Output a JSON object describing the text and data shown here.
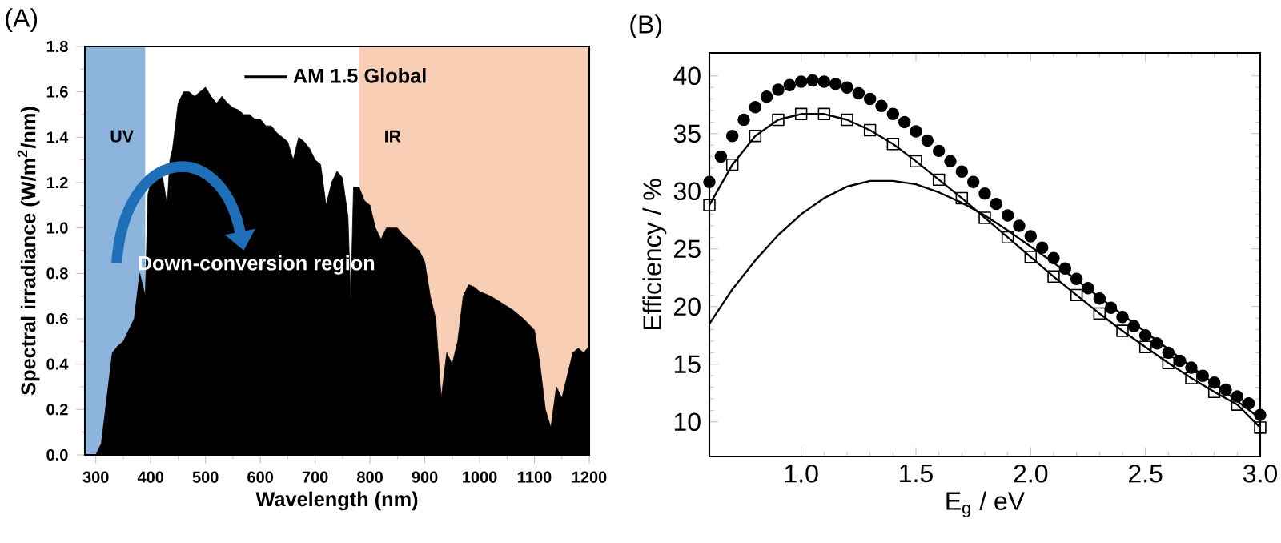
{
  "chart_data": [
    {
      "type": "area",
      "title": "(A)",
      "xlabel": "Wavelength (nm)",
      "ylabel": "Spectral irradiance (W/m$^{2}$/nm)",
      "x": [
        280,
        300,
        310,
        320,
        330,
        340,
        350,
        360,
        370,
        380,
        390,
        395,
        400,
        410,
        420,
        430,
        435,
        440,
        450,
        460,
        470,
        480,
        490,
        500,
        510,
        520,
        530,
        540,
        550,
        560,
        570,
        580,
        590,
        600,
        610,
        620,
        630,
        640,
        650,
        660,
        670,
        680,
        690,
        700,
        710,
        720,
        730,
        740,
        750,
        760,
        765,
        770,
        780,
        790,
        800,
        810,
        820,
        830,
        840,
        850,
        860,
        870,
        880,
        890,
        900,
        910,
        920,
        930,
        940,
        950,
        960,
        970,
        980,
        990,
        1000,
        1020,
        1040,
        1060,
        1080,
        1100,
        1110,
        1120,
        1130,
        1140,
        1150,
        1160,
        1170,
        1180,
        1190,
        1200
      ],
      "series": [
        {
          "name": "AM 1.5 Global",
          "color": "#000000",
          "values": [
            0,
            0,
            0.05,
            0.25,
            0.45,
            0.48,
            0.5,
            0.55,
            0.6,
            0.8,
            0.7,
            1.15,
            1.2,
            1.25,
            1.25,
            1.1,
            1.3,
            1.35,
            1.55,
            1.6,
            1.6,
            1.58,
            1.6,
            1.62,
            1.58,
            1.55,
            1.58,
            1.55,
            1.53,
            1.52,
            1.5,
            1.5,
            1.48,
            1.48,
            1.45,
            1.45,
            1.42,
            1.4,
            1.38,
            1.3,
            1.4,
            1.38,
            1.35,
            1.3,
            1.28,
            1.1,
            1.2,
            1.25,
            1.22,
            1.05,
            0.68,
            1.18,
            1.18,
            1.12,
            1.1,
            1.0,
            0.95,
            1.0,
            1.0,
            1.0,
            0.97,
            0.95,
            0.92,
            0.9,
            0.85,
            0.7,
            0.6,
            0.25,
            0.45,
            0.4,
            0.5,
            0.7,
            0.75,
            0.74,
            0.72,
            0.7,
            0.67,
            0.64,
            0.6,
            0.55,
            0.4,
            0.2,
            0.12,
            0.3,
            0.25,
            0.35,
            0.45,
            0.47,
            0.45,
            0.48
          ]
        }
      ],
      "xlim": [
        280,
        1200
      ],
      "ylim": [
        0,
        1.8
      ],
      "xticks": [
        300,
        400,
        500,
        600,
        700,
        800,
        900,
        1000,
        1100,
        1200
      ],
      "yticks": [
        {
          "value": 0,
          "label": "0.0"
        },
        {
          "value": 0.2,
          "label": "0.2"
        },
        {
          "value": 0.4,
          "label": "0.4"
        },
        {
          "value": 0.6,
          "label": "0.6"
        },
        {
          "value": 0.8,
          "label": "0.8"
        },
        {
          "value": 1.0,
          "label": "1.0"
        },
        {
          "value": 1.2,
          "label": "1.2"
        },
        {
          "value": 1.4,
          "label": "1.4"
        },
        {
          "value": 1.6,
          "label": "1.6"
        },
        {
          "value": 1.8,
          "label": "1.8"
        }
      ],
      "bands": [
        {
          "axis": "x",
          "from": 280,
          "to": 390,
          "label": "UV",
          "color": "#8cb4dc"
        },
        {
          "axis": "x",
          "from": 780,
          "to": 1200,
          "label": "IR",
          "color": "#f8cfb4"
        }
      ],
      "legend": "top",
      "annotations": [
        "Down-conversion region"
      ]
    },
    {
      "type": "line",
      "title": "(B)",
      "xlabel": "E$_{g}$ / eV",
      "ylabel": "Efficiency / %",
      "series": [
        {
          "type": "scatter",
          "marker": "circle",
          "color": "#000000",
          "x": [
            0.6,
            0.65,
            0.7,
            0.75,
            0.8,
            0.85,
            0.9,
            0.95,
            1.0,
            1.05,
            1.1,
            1.15,
            1.2,
            1.25,
            1.3,
            1.35,
            1.4,
            1.45,
            1.5,
            1.55,
            1.6,
            1.65,
            1.7,
            1.75,
            1.8,
            1.85,
            1.9,
            1.95,
            2.0,
            2.05,
            2.1,
            2.15,
            2.2,
            2.25,
            2.3,
            2.35,
            2.4,
            2.45,
            2.5,
            2.55,
            2.6,
            2.65,
            2.7,
            2.75,
            2.8,
            2.85,
            2.9,
            2.95,
            3.0
          ],
          "values": [
            30.8,
            33,
            34.8,
            36.2,
            37.3,
            38.2,
            38.8,
            39.2,
            39.5,
            39.6,
            39.5,
            39.3,
            39.0,
            38.5,
            38.0,
            37.4,
            36.7,
            36.0,
            35.2,
            34.4,
            33.5,
            32.6,
            31.7,
            30.8,
            29.8,
            28.9,
            27.9,
            27.0,
            26.1,
            25.1,
            24.2,
            23.3,
            22.4,
            21.6,
            20.7,
            19.9,
            19.1,
            18.3,
            17.5,
            16.8,
            16.0,
            15.3,
            14.7,
            14.0,
            13.4,
            12.8,
            12.2,
            11.6,
            10.6
          ]
        },
        {
          "type": "line",
          "color": "#000000",
          "x": [
            0.6,
            0.7,
            0.8,
            0.9,
            1.0,
            1.1,
            1.2,
            1.3,
            1.4,
            1.5,
            1.6,
            1.7,
            1.8,
            1.9,
            2.0,
            2.1,
            2.2,
            2.3,
            2.4,
            2.5,
            2.6,
            2.7,
            2.8,
            2.9,
            3.0
          ],
          "values": [
            18.5,
            21.5,
            24.0,
            26.2,
            28.0,
            29.4,
            30.4,
            30.9,
            30.9,
            30.6,
            29.9,
            29.0,
            27.9,
            26.6,
            25.2,
            23.8,
            22.3,
            20.8,
            19.3,
            17.8,
            16.3,
            14.8,
            13.3,
            11.8,
            10.3
          ]
        },
        {
          "type": "line",
          "marker": "square",
          "color": "#000000",
          "x": [
            0.6,
            0.7,
            0.8,
            0.9,
            1.0,
            1.1,
            1.2,
            1.3,
            1.4,
            1.5,
            1.6,
            1.7,
            1.8,
            1.9,
            2.0,
            2.1,
            2.2,
            2.3,
            2.4,
            2.5,
            2.6,
            2.7,
            2.8,
            2.9,
            3.0
          ],
          "values": [
            28.8,
            32.3,
            34.8,
            36.2,
            36.7,
            36.7,
            36.2,
            35.3,
            34.1,
            32.6,
            31.0,
            29.4,
            27.7,
            26.0,
            24.3,
            22.6,
            21.0,
            19.4,
            17.9,
            16.5,
            15.1,
            13.8,
            12.6,
            11.5,
            9.5
          ]
        }
      ],
      "xlim": [
        0.6,
        3.0
      ],
      "ylim": [
        7,
        42
      ],
      "xticks": [
        {
          "value": 1.0,
          "label": "1.0"
        },
        {
          "value": 1.5,
          "label": "1.5"
        },
        {
          "value": 2.0,
          "label": "2.0"
        },
        {
          "value": 2.5,
          "label": "2.5"
        },
        {
          "value": 3.0,
          "label": "3.0"
        }
      ],
      "yticks": [
        10,
        15,
        20,
        25,
        30,
        35,
        40
      ]
    }
  ]
}
